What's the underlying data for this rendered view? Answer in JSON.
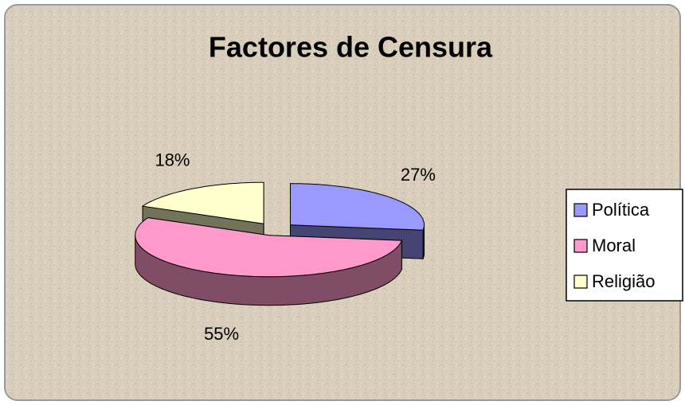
{
  "chart_data": {
    "type": "pie3d",
    "title": "Factores de Censura",
    "categories": [
      "Política",
      "Moral",
      "Religião"
    ],
    "values": [
      27,
      55,
      18
    ],
    "value_labels": [
      "27%",
      "55%",
      "18%"
    ],
    "colors": [
      "#9999ff",
      "#ff99cc",
      "#ffffcc"
    ],
    "legend": "right"
  }
}
